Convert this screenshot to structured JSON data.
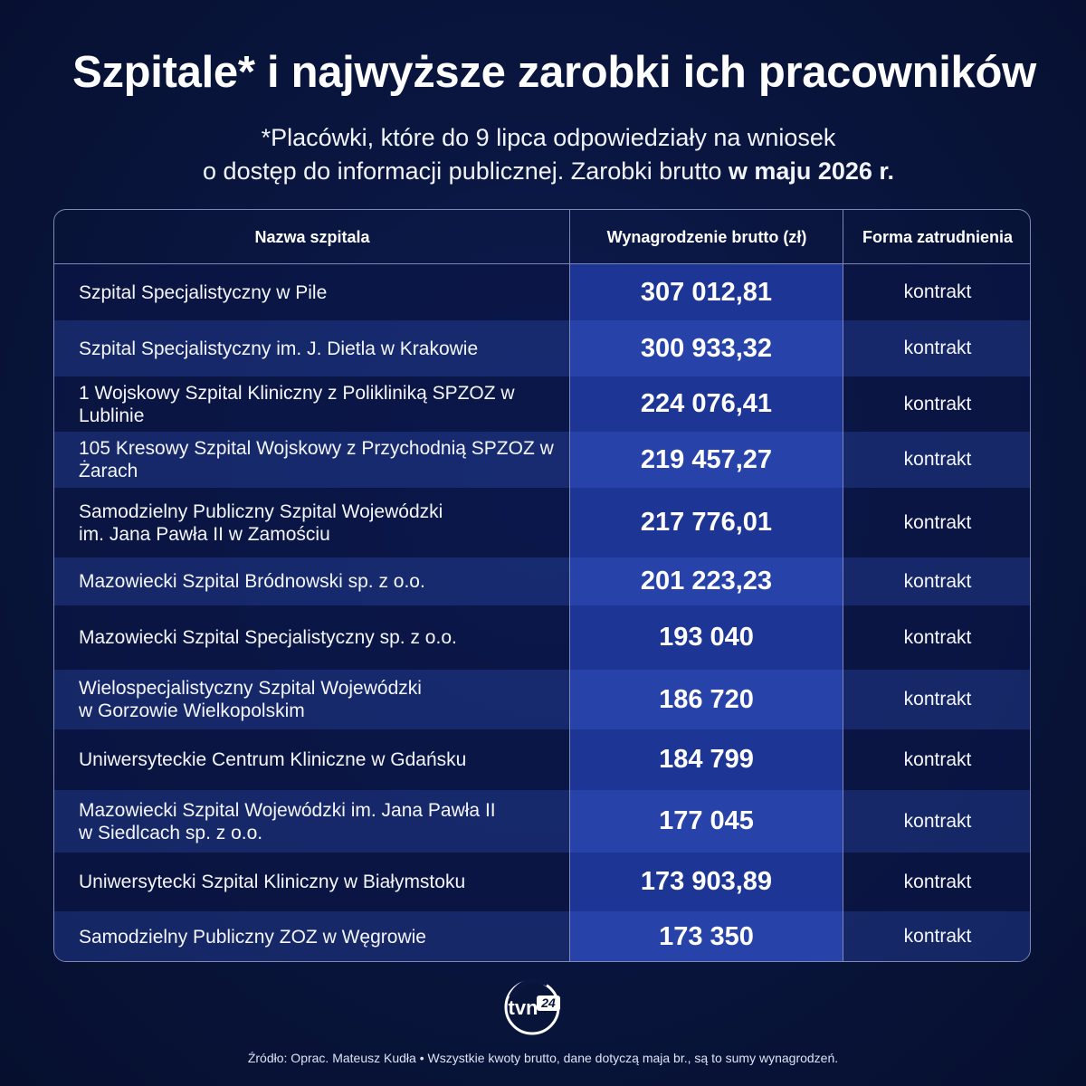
{
  "header": {
    "title": "Szpitale* i najwyższe zarobki ich pracowników",
    "subtitle_line1": "*Placówki, które do 9 lipca odpowiedziały na wniosek",
    "subtitle_line2_prefix": "o dostęp do informacji publicznej. Zarobki brutto ",
    "subtitle_line2_bold": "w maju 2026 r."
  },
  "table": {
    "columns": [
      "Nazwa szpitala",
      "Wynagrodzenie brutto (zł)",
      "Forma zatrudnienia"
    ],
    "rows": [
      {
        "name": "Szpital Specjalistyczny w Pile",
        "value": "307 012,81",
        "form": "kontrakt"
      },
      {
        "name": "Szpital Specjalistyczny im. J. Dietla w Krakowie",
        "value": "300 933,32",
        "form": "kontrakt"
      },
      {
        "name": "1 Wojskowy Szpital Kliniczny z Polikliniką SPZOZ w Lublinie",
        "value": "224 076,41",
        "form": "kontrakt"
      },
      {
        "name": "105 Kresowy Szpital Wojskowy z Przychodnią SPZOZ w Żarach",
        "value": "219 457,27",
        "form": "kontrakt"
      },
      {
        "name": "Samodzielny Publiczny Szpital Wojewódzki\nim. Jana Pawła II w Zamościu",
        "value": "217 776,01",
        "form": "kontrakt"
      },
      {
        "name": "Mazowiecki Szpital Bródnowski sp. z o.o.",
        "value": "201 223,23",
        "form": "kontrakt"
      },
      {
        "name": "Mazowiecki Szpital Specjalistyczny sp. z o.o.",
        "value": "193 040",
        "form": "kontrakt"
      },
      {
        "name": "Wielospecjalistyczny Szpital Wojewódzki\nw Gorzowie Wielkopolskim",
        "value": "186 720",
        "form": "kontrakt"
      },
      {
        "name": "Uniwersyteckie Centrum Kliniczne w Gdańsku",
        "value": "184 799",
        "form": "kontrakt"
      },
      {
        "name": "Mazowiecki Szpital Wojewódzki im. Jana Pawła II\nw Siedlcach sp. z o.o.",
        "value": "177 045",
        "form": "kontrakt"
      },
      {
        "name": "Uniwersytecki Szpital Kliniczny w Białymstoku",
        "value": "173 903,89",
        "form": "kontrakt"
      },
      {
        "name": "Samodzielny Publiczny ZOZ w Węgrowie",
        "value": "173 350",
        "form": "kontrakt"
      }
    ]
  },
  "logo": {
    "text": "tvn",
    "badge": "24",
    "icon": "tvn24-logo"
  },
  "footer": "Źródło: Oprac. Mateusz Kudła • Wszystkie kwoty brutto, dane dotyczą maja br., są to sumy wynagrodzeń.",
  "colors": {
    "background": "#0a1640",
    "value_column": "#1d3696",
    "value_column_alt": "#2743aa",
    "border": "#7d88b8"
  }
}
